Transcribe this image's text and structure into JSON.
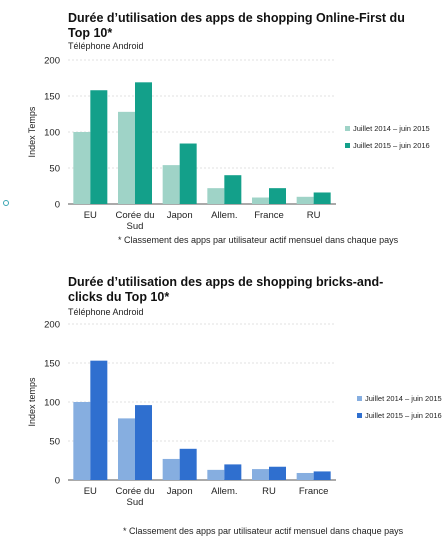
{
  "charts": {
    "online_first": {
      "title": "Durée d’utilisation des apps de shopping Online-First du Top 10*",
      "subtitle": "Téléphone Android",
      "footnote": "* Classement des apps par utilisateur actif mensuel dans chaque pays"
    },
    "bricks_clicks": {
      "title": "Durée d’utilisation des apps de shopping bricks-and-clicks du Top 10*",
      "subtitle": "Téléphone Android",
      "footnote": "* Classement des apps par utilisateur actif mensuel dans chaque pays"
    }
  },
  "chart_data": [
    {
      "type": "bar",
      "title": "Durée d’utilisation des apps de shopping Online-First du Top 10*",
      "subtitle": "Téléphone Android",
      "ylabel": "Index Temps",
      "xlabel": "",
      "categories": [
        "EU",
        "Corée du Sud",
        "Japon",
        "Allem.",
        "France",
        "RU"
      ],
      "category_lines": [
        [
          "EU"
        ],
        [
          "Corée du",
          "Sud"
        ],
        [
          "Japon"
        ],
        [
          "Allem."
        ],
        [
          "France"
        ],
        [
          "RU"
        ]
      ],
      "series": [
        {
          "name": "Juillet 2014 – juin 2015",
          "values": [
            100,
            128,
            54,
            22,
            9,
            10
          ],
          "color": "#9fd3c7"
        },
        {
          "name": "Juillet 2015 – juin 2016",
          "values": [
            158,
            169,
            84,
            40,
            22,
            16
          ],
          "color": "#13a08a"
        }
      ],
      "ylim": [
        0,
        200
      ],
      "yticks": [
        0,
        50,
        100,
        150,
        200
      ],
      "grid": true,
      "legend": "right"
    },
    {
      "type": "bar",
      "title": "Durée d’utilisation des apps de shopping bricks-and-clicks du Top 10*",
      "subtitle": "Téléphone Android",
      "ylabel": "Index temps",
      "xlabel": "",
      "categories": [
        "EU",
        "Corée du Sud",
        "Japon",
        "Allem.",
        "RU",
        "France"
      ],
      "category_lines": [
        [
          "EU"
        ],
        [
          "Corée du",
          "Sud"
        ],
        [
          "Japon"
        ],
        [
          "Allem."
        ],
        [
          "RU"
        ],
        [
          "France"
        ]
      ],
      "series": [
        {
          "name": "Juillet 2014 – juin 2015",
          "values": [
            100,
            79,
            27,
            13,
            14,
            9
          ],
          "color": "#86aee0"
        },
        {
          "name": "Juillet 2015 – juin 2016",
          "values": [
            153,
            96,
            40,
            20,
            17,
            11
          ],
          "color": "#2f6fcf"
        }
      ],
      "ylim": [
        0,
        200
      ],
      "yticks": [
        0,
        50,
        100,
        150,
        200
      ],
      "grid": true,
      "legend": "right"
    }
  ]
}
